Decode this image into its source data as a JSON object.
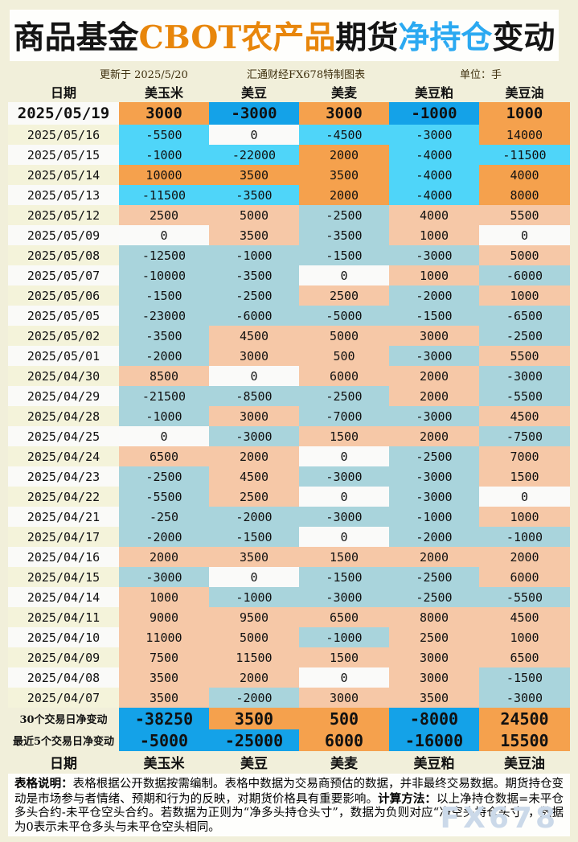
{
  "title_segments": [
    {
      "text": "商品基金",
      "color": "#141414"
    },
    {
      "text": "CBOT农产品",
      "color": "#E8860B"
    },
    {
      "text": "期货",
      "color": "#141414"
    },
    {
      "text": "净持仓",
      "color": "#2BA9F1"
    },
    {
      "text": "变动",
      "color": "#141414"
    }
  ],
  "meta": {
    "updated": "更新于 2025/5/20",
    "source": "汇通财经FX678特制图表",
    "unit": "单位：手"
  },
  "watermark": "FX678",
  "notes": [
    {
      "label": "表格说明：",
      "text": "表格根据公开数据按需编制。表格中数据为交易商预估的数据，并非最终交易数据。期货持仓变动是市场参与者情绪、预期和行为的反映，对期货价格具有重要影响。"
    },
    {
      "label": "计算方法：",
      "text": "以上净持仓数据=未平仓多头合约-未平仓空头合约。若数据为正则为“净多头持仓头寸”，数据为负则对应“净空头持仓头寸”，数据为0表示未平仓多头与未平仓空头相同。"
    }
  ],
  "colors": {
    "page_bg": "#F1EFDA",
    "panel_bg": "#FEFEFC",
    "orange_strong": "#F5A14D",
    "blue_strong": "#14A2E8",
    "cyan_bright": "#4FD5F9",
    "salmon": "#F6C8A7",
    "pale_blue": "#A9D4DC",
    "zero_white": "#FAFAF9",
    "date_cream": "#F4F3DA",
    "date_white": "#FAFAF8"
  },
  "chart_data": {
    "type": "table",
    "title": "商品基金CBOT农产品期货净持仓变动",
    "unit": "手",
    "columns": [
      "日期",
      "美玉米",
      "美豆",
      "美麦",
      "美豆粕",
      "美豆油"
    ],
    "rows": [
      {
        "date": "2025/05/19",
        "tier": "latest",
        "values": [
          3000,
          -3000,
          3000,
          -1000,
          1000
        ]
      },
      {
        "date": "2025/05/16",
        "tier": "recent",
        "values": [
          -5500,
          0,
          -4500,
          -3000,
          14000
        ]
      },
      {
        "date": "2025/05/15",
        "tier": "recent",
        "values": [
          -1000,
          -22000,
          2000,
          -4000,
          -11500
        ]
      },
      {
        "date": "2025/05/14",
        "tier": "recent",
        "values": [
          10000,
          3500,
          3500,
          -4000,
          4000
        ]
      },
      {
        "date": "2025/05/13",
        "tier": "recent",
        "values": [
          -11500,
          -3500,
          2000,
          -4000,
          8000
        ]
      },
      {
        "date": "2025/05/12",
        "tier": "older",
        "values": [
          2500,
          5000,
          -2500,
          4000,
          5500
        ]
      },
      {
        "date": "2025/05/09",
        "tier": "older",
        "values": [
          0,
          3500,
          -3500,
          1000,
          0
        ]
      },
      {
        "date": "2025/05/08",
        "tier": "older",
        "values": [
          -12500,
          -1000,
          -1500,
          -3000,
          5000
        ]
      },
      {
        "date": "2025/05/07",
        "tier": "older",
        "values": [
          -10000,
          -3500,
          0,
          1000,
          -6000
        ]
      },
      {
        "date": "2025/05/06",
        "tier": "older",
        "values": [
          -1500,
          -2500,
          2500,
          -2000,
          1000
        ]
      },
      {
        "date": "2025/05/05",
        "tier": "older",
        "values": [
          -23000,
          -6000,
          -5000,
          -1500,
          -6500
        ]
      },
      {
        "date": "2025/05/02",
        "tier": "older",
        "values": [
          -3500,
          4500,
          5000,
          3000,
          -2500
        ]
      },
      {
        "date": "2025/05/01",
        "tier": "older",
        "values": [
          -2000,
          3000,
          500,
          -3000,
          5500
        ]
      },
      {
        "date": "2025/04/30",
        "tier": "older",
        "values": [
          8500,
          0,
          6000,
          2000,
          -3000
        ]
      },
      {
        "date": "2025/04/29",
        "tier": "older",
        "values": [
          -21500,
          -8500,
          -2500,
          2000,
          -5500
        ]
      },
      {
        "date": "2025/04/28",
        "tier": "older",
        "values": [
          -1000,
          3000,
          -7000,
          -3000,
          4500
        ]
      },
      {
        "date": "2025/04/25",
        "tier": "older",
        "values": [
          0,
          -3000,
          1500,
          2000,
          -7500
        ]
      },
      {
        "date": "2025/04/24",
        "tier": "older",
        "values": [
          6500,
          2000,
          0,
          -2500,
          7000
        ]
      },
      {
        "date": "2025/04/23",
        "tier": "older",
        "values": [
          -2500,
          4500,
          -3000,
          -3000,
          1500
        ]
      },
      {
        "date": "2025/04/22",
        "tier": "older",
        "values": [
          -5500,
          2500,
          0,
          -3000,
          0
        ]
      },
      {
        "date": "2025/04/21",
        "tier": "older",
        "values": [
          -250,
          -2000,
          -3000,
          -1000,
          1000
        ]
      },
      {
        "date": "2025/04/17",
        "tier": "older",
        "values": [
          -2000,
          -1500,
          0,
          -2000,
          -1000
        ]
      },
      {
        "date": "2025/04/16",
        "tier": "older",
        "values": [
          2000,
          3500,
          1500,
          2000,
          2000
        ]
      },
      {
        "date": "2025/04/15",
        "tier": "older",
        "values": [
          -3000,
          0,
          -1500,
          -2500,
          6000
        ]
      },
      {
        "date": "2025/04/14",
        "tier": "older",
        "values": [
          1000,
          -1000,
          -3000,
          -2500,
          -5500
        ]
      },
      {
        "date": "2025/04/11",
        "tier": "older",
        "values": [
          9000,
          9500,
          6500,
          8000,
          4500
        ]
      },
      {
        "date": "2025/04/10",
        "tier": "older",
        "values": [
          11000,
          5000,
          -1000,
          2500,
          1000
        ]
      },
      {
        "date": "2025/04/09",
        "tier": "older",
        "values": [
          7500,
          11500,
          1500,
          3000,
          6500
        ]
      },
      {
        "date": "2025/04/08",
        "tier": "older",
        "values": [
          3500,
          2000,
          0,
          3000,
          -1500
        ]
      },
      {
        "date": "2025/04/07",
        "tier": "older",
        "values": [
          3500,
          -2000,
          3000,
          3500,
          -3000
        ]
      }
    ],
    "summary_rows": [
      {
        "label": "30个交易日净变动",
        "values": [
          -38250,
          3500,
          500,
          -8000,
          24500
        ]
      },
      {
        "label": "最近5个交易日净变动",
        "values": [
          -5000,
          -25000,
          6000,
          -16000,
          15500
        ]
      }
    ],
    "footer_columns": [
      "日期",
      "美玉米",
      "美豆",
      "美麦",
      "美豆粕",
      "美豆油"
    ]
  }
}
